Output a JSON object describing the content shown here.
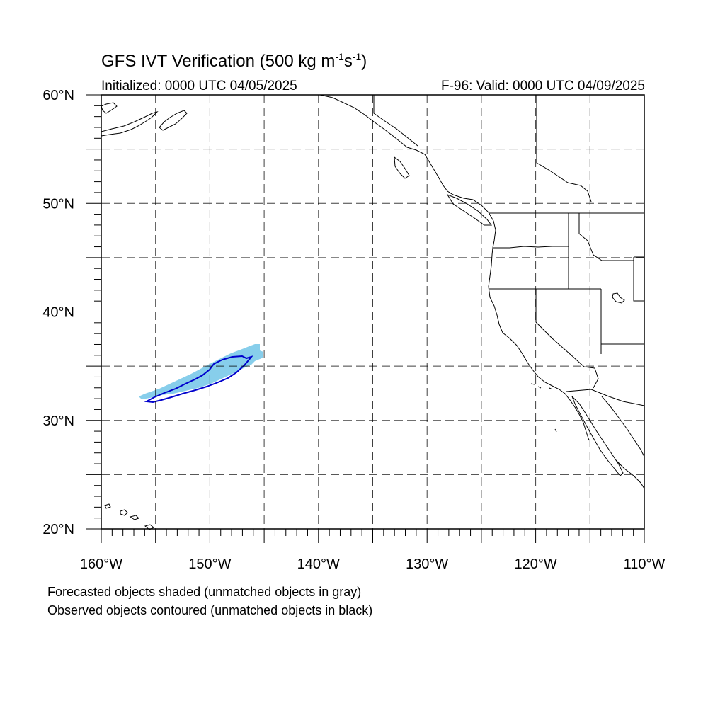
{
  "title": {
    "main": "GFS IVT Verification (500 kg m",
    "sup1": "-1",
    "mid": "s",
    "sup2": "-1",
    "end": ")"
  },
  "initialized": "Initialized: 0000 UTC 04/05/2025",
  "valid": "F-96: Valid: 0000 UTC 04/09/2025",
  "lat_labels": [
    "20°N",
    "30°N",
    "40°N",
    "50°N",
    "60°N"
  ],
  "lon_labels": [
    "160°W",
    "150°W",
    "140°W",
    "130°W",
    "120°W",
    "110°W"
  ],
  "legend": {
    "forecast": "Forecasted objects shaded (unmatched objects in gray)",
    "observed": "Observed objects contoured (unmatched objects in black)"
  },
  "colors": {
    "forecast_fill": "#87ceeb",
    "observed_contour": "#0000cd",
    "coastline": "#000000",
    "grid": "#000000"
  },
  "map": {
    "lon_range": [
      -160,
      -110
    ],
    "lat_range": [
      20,
      60
    ],
    "grid_lon_step": 5,
    "grid_lat_step": 5,
    "grid_style": "dashed"
  }
}
